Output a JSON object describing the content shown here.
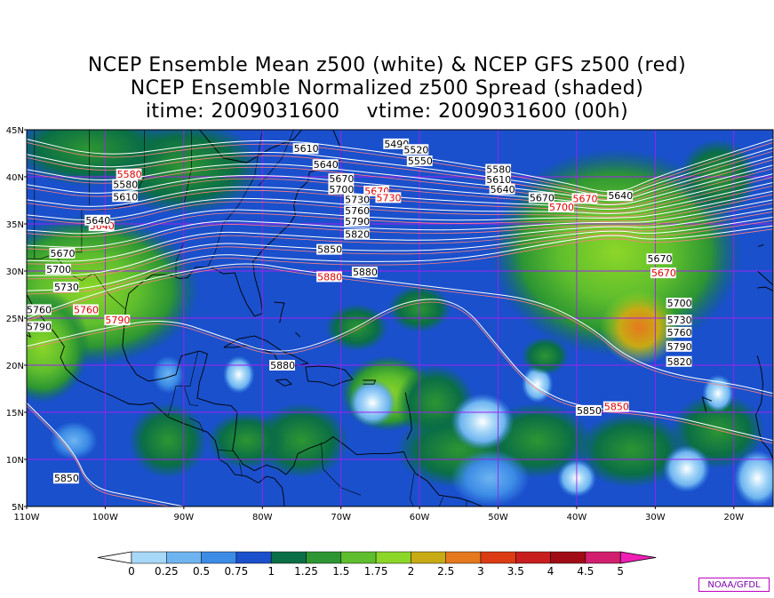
{
  "title": {
    "line1": "NCEP Ensemble Mean z500 (white) & NCEP GFS z500 (red)",
    "line2": "NCEP Ensemble Normalized z500 Spread (shaded)",
    "line3": "itime: 2009031600    vtime: 2009031600 (00h)"
  },
  "axes": {
    "lat_labels": [
      "45N",
      "40N",
      "35N",
      "30N",
      "25N",
      "20N",
      "15N",
      "10N",
      "5N"
    ],
    "lon_labels": [
      "110W",
      "100W",
      "90W",
      "80W",
      "70W",
      "60W",
      "50W",
      "40W",
      "30W",
      "20W"
    ]
  },
  "colorbar": {
    "ticks": [
      "0",
      "0.25",
      "0.5",
      "0.75",
      "1",
      "1.25",
      "1.5",
      "1.75",
      "2",
      "2.5",
      "3",
      "3.5",
      "4",
      "4.5",
      "5"
    ],
    "colors": [
      "#a8d8f8",
      "#6eb4f0",
      "#3c8ce6",
      "#1a50cc",
      "#0a6e46",
      "#2d9632",
      "#5fbe2d",
      "#8cd628",
      "#c8aa14",
      "#e6781e",
      "#dc3c14",
      "#c81e1e",
      "#a00a14",
      "#d21e6e"
    ],
    "low_color": "#ffffff",
    "high_color": "#f01eb4"
  },
  "chart_data": {
    "type": "heatmap",
    "lon_range": [
      -110,
      -15
    ],
    "lat_range": [
      5,
      45
    ],
    "mean_contours": [
      {
        "value": "5490",
        "lon": -64.5,
        "lat": 43.5
      },
      {
        "value": "5520",
        "lon": -62.0,
        "lat": 42.9
      },
      {
        "value": "5550",
        "lon": -61.5,
        "lat": 41.7
      },
      {
        "value": "5580",
        "lon": -51.5,
        "lat": 40.8
      },
      {
        "value": "5610",
        "lon": -51.5,
        "lat": 39.7
      },
      {
        "value": "5640",
        "lon": -51.0,
        "lat": 38.7
      },
      {
        "value": "5670",
        "lon": -46.0,
        "lat": 37.8
      },
      {
        "value": "5640",
        "lon": -36.0,
        "lat": 38.0
      },
      {
        "value": "5610",
        "lon": -76.0,
        "lat": 43.0
      },
      {
        "value": "5640",
        "lon": -73.5,
        "lat": 41.3
      },
      {
        "value": "5670",
        "lon": -71.5,
        "lat": 39.8
      },
      {
        "value": "5700",
        "lon": -71.5,
        "lat": 38.7
      },
      {
        "value": "5730",
        "lon": -69.5,
        "lat": 37.6
      },
      {
        "value": "5760",
        "lon": -69.5,
        "lat": 36.4
      },
      {
        "value": "5790",
        "lon": -69.5,
        "lat": 35.3
      },
      {
        "value": "5820",
        "lon": -69.5,
        "lat": 33.9
      },
      {
        "value": "5850",
        "lon": -73.0,
        "lat": 32.3
      },
      {
        "value": "5880",
        "lon": -68.5,
        "lat": 29.9
      },
      {
        "value": "5580",
        "lon": -99.0,
        "lat": 39.2
      },
      {
        "value": "5610",
        "lon": -99.0,
        "lat": 37.9
      },
      {
        "value": "5640",
        "lon": -102.5,
        "lat": 35.4
      },
      {
        "value": "5670",
        "lon": -107.0,
        "lat": 31.9
      },
      {
        "value": "5700",
        "lon": -107.5,
        "lat": 30.2
      },
      {
        "value": "5730",
        "lon": -106.5,
        "lat": 28.3
      },
      {
        "value": "5760",
        "lon": -110.0,
        "lat": 25.9
      },
      {
        "value": "5790",
        "lon": -110.0,
        "lat": 24.1
      },
      {
        "value": "5880",
        "lon": -79.0,
        "lat": 20.0
      },
      {
        "value": "5670",
        "lon": -31.0,
        "lat": 31.3
      },
      {
        "value": "5700",
        "lon": -28.5,
        "lat": 26.6
      },
      {
        "value": "5730",
        "lon": -28.5,
        "lat": 24.8
      },
      {
        "value": "5760",
        "lon": -28.5,
        "lat": 23.5
      },
      {
        "value": "5790",
        "lon": -28.5,
        "lat": 22.0
      },
      {
        "value": "5820",
        "lon": -28.5,
        "lat": 20.4
      },
      {
        "value": "5850",
        "lon": -40.0,
        "lat": 15.2
      },
      {
        "value": "5850",
        "lon": -106.5,
        "lat": 8.0
      }
    ],
    "gfs_contours": [
      {
        "value": "5580",
        "lon": -98.5,
        "lat": 40.3
      },
      {
        "value": "5640",
        "lon": -102.0,
        "lat": 34.8
      },
      {
        "value": "5670",
        "lon": -67.0,
        "lat": 38.5
      },
      {
        "value": "5730",
        "lon": -65.5,
        "lat": 37.8
      },
      {
        "value": "5700",
        "lon": -43.5,
        "lat": 36.8
      },
      {
        "value": "5670",
        "lon": -40.5,
        "lat": 37.7
      },
      {
        "value": "5880",
        "lon": -73.0,
        "lat": 29.4
      },
      {
        "value": "5790",
        "lon": -100.0,
        "lat": 24.8
      },
      {
        "value": "5760",
        "lon": -104.0,
        "lat": 25.9
      },
      {
        "value": "5670",
        "lon": -30.5,
        "lat": 29.8
      },
      {
        "value": "5850",
        "lon": -36.5,
        "lat": 15.6
      }
    ]
  }
}
